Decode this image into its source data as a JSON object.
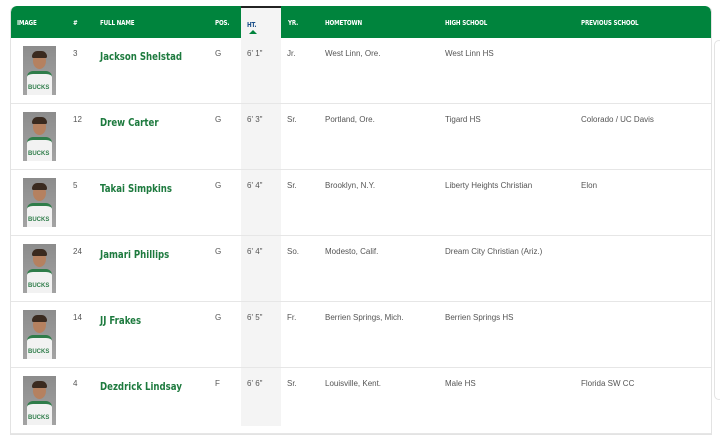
{
  "columns": {
    "image": "IMAGE",
    "number": "#",
    "full_name": "FULL NAME",
    "pos": "POS.",
    "ht": "HT.",
    "yr": "YR.",
    "hometown": "HOMETOWN",
    "high_school": "HIGH SCHOOL",
    "previous_school": "PREVIOUS SCHOOL"
  },
  "sorted_column": "HT.",
  "sort_direction": "ascending",
  "colors": {
    "header": "#00843d",
    "name": "#1d7a3e"
  },
  "players": [
    {
      "number": "3",
      "name": "Jackson Shelstad",
      "pos": "G",
      "ht": "6' 1\"",
      "yr": "Jr.",
      "hometown": "West Linn, Ore.",
      "high_school": "West Linn HS",
      "previous_school": ""
    },
    {
      "number": "12",
      "name": "Drew Carter",
      "pos": "G",
      "ht": "6' 3\"",
      "yr": "Sr.",
      "hometown": "Portland, Ore.",
      "high_school": "Tigard HS",
      "previous_school": "Colorado / UC Davis"
    },
    {
      "number": "5",
      "name": "Takai Simpkins",
      "pos": "G",
      "ht": "6' 4\"",
      "yr": "Sr.",
      "hometown": "Brooklyn, N.Y.",
      "high_school": "Liberty Heights Christian",
      "previous_school": "Elon"
    },
    {
      "number": "24",
      "name": "Jamari Phillips",
      "pos": "G",
      "ht": "6' 4\"",
      "yr": "So.",
      "hometown": "Modesto, Calif.",
      "high_school": "Dream City Christian (Ariz.)",
      "previous_school": ""
    },
    {
      "number": "14",
      "name": "JJ Frakes",
      "pos": "G",
      "ht": "6' 5\"",
      "yr": "Fr.",
      "hometown": "Berrien Springs, Mich.",
      "high_school": "Berrien Springs HS",
      "previous_school": ""
    },
    {
      "number": "4",
      "name": "Dezdrick Lindsay",
      "pos": "F",
      "ht": "6' 6\"",
      "yr": "Sr.",
      "hometown": "Louisville, Kent.",
      "high_school": "Male HS",
      "previous_school": "Florida SW CC"
    }
  ]
}
